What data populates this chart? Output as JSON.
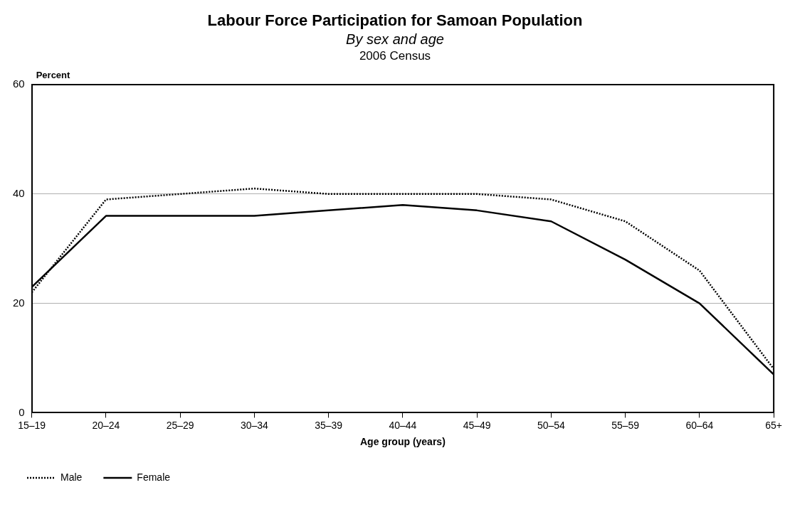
{
  "chart_data": {
    "type": "line",
    "title": "Labour Force Participation for Samoan Population",
    "subtitle": "By sex and age",
    "annotations": [
      "2006 Census"
    ],
    "ylabel": "Percent",
    "xlabel": "Age group (years)",
    "categories": [
      "15–19",
      "20–24",
      "25–29",
      "30–34",
      "35–39",
      "40–44",
      "45–49",
      "50–54",
      "55–59",
      "60–64",
      "65+"
    ],
    "series": [
      {
        "name": "Male",
        "color": "#000000",
        "line_style": "dotted",
        "values": [
          22,
          39,
          40,
          41,
          40,
          40,
          40,
          39,
          35,
          26,
          8
        ]
      },
      {
        "name": "Female",
        "color": "#000000",
        "line_style": "solid",
        "values": [
          23,
          36,
          36,
          36,
          37,
          38,
          37,
          35,
          28,
          20,
          7
        ]
      }
    ],
    "ylim": [
      0,
      60
    ],
    "yticks": [
      0,
      20,
      40,
      60
    ],
    "grid": "y",
    "legend": "bottom left",
    "marker": "none"
  }
}
